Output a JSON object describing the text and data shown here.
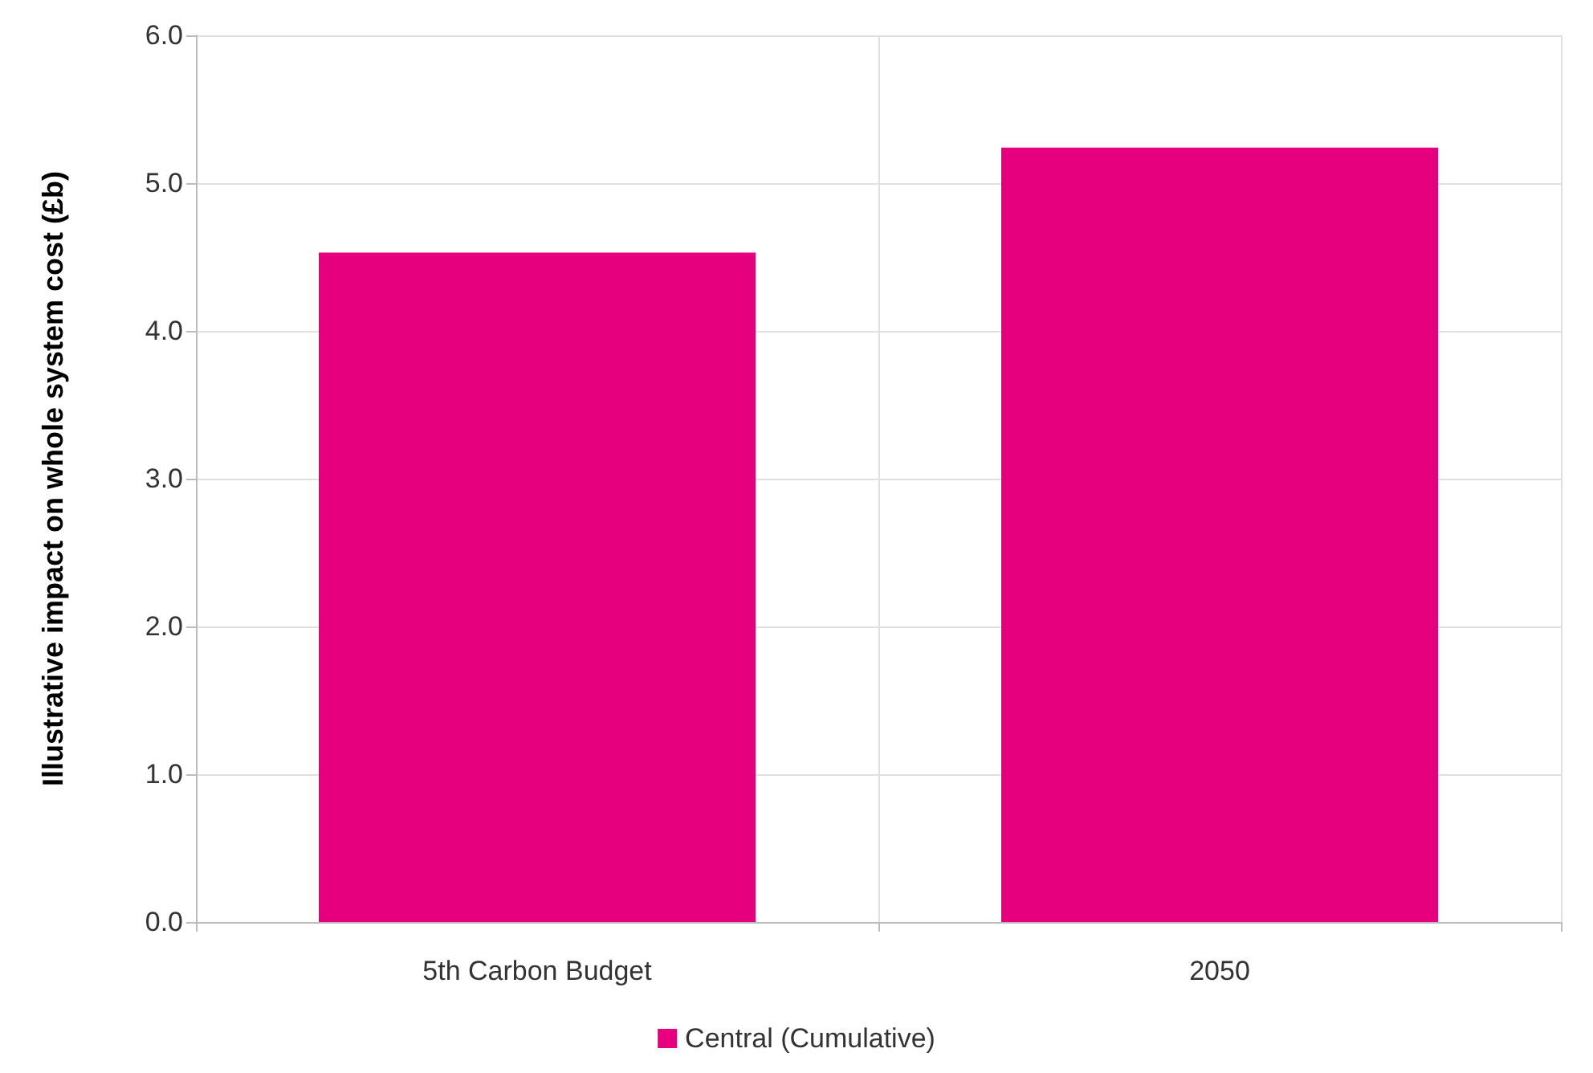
{
  "chart_data": {
    "type": "bar",
    "ylabel": "Illustrative impact on whole system cost (£b)",
    "categories": [
      "5th Carbon Budget",
      "2050"
    ],
    "series": [
      {
        "name": "Central (Cumulative)",
        "color": "#e6007e",
        "values": [
          4.53,
          5.24
        ]
      }
    ],
    "ylim": [
      0,
      6
    ],
    "yticks": [
      {
        "value": 0,
        "label": "0.0"
      },
      {
        "value": 1,
        "label": "1.0"
      },
      {
        "value": 2,
        "label": "2.0"
      },
      {
        "value": 3,
        "label": "3.0"
      },
      {
        "value": 4,
        "label": "4.0"
      },
      {
        "value": 5,
        "label": "5.0"
      },
      {
        "value": 6,
        "label": "6.0"
      }
    ],
    "grid": true,
    "legend": "bottom"
  }
}
